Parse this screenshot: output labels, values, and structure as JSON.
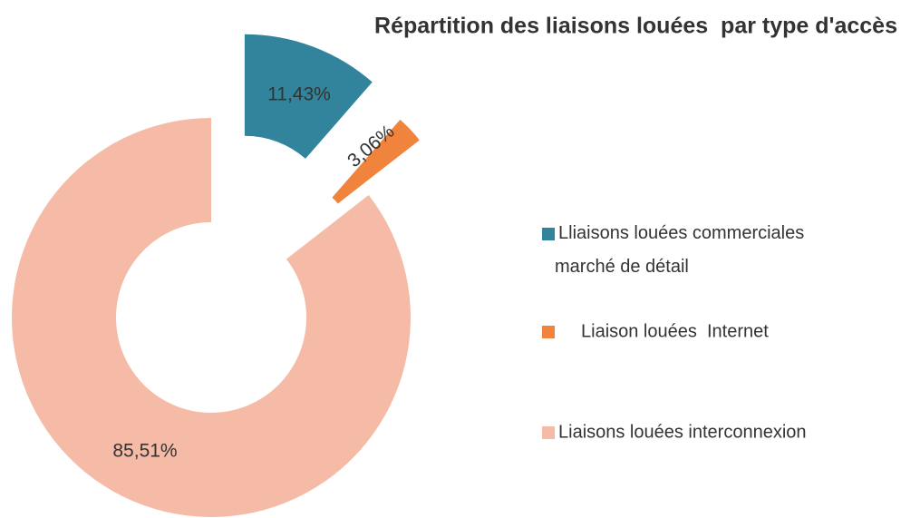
{
  "chart_data": {
    "type": "donut",
    "title": "Répartition des liaisons louées  par type d'accès",
    "categories": [
      "Lliaisons louées commerciales marché de détail",
      "Liaison louées  Internet",
      "Liaisons louées interconnexion"
    ],
    "values": [
      11.43,
      3.06,
      85.51
    ],
    "value_labels": [
      "11,43%",
      "3,06%",
      "85,51%"
    ],
    "colors": [
      "#31849b",
      "#f0843c",
      "#f5bba7"
    ],
    "legend": "right"
  }
}
